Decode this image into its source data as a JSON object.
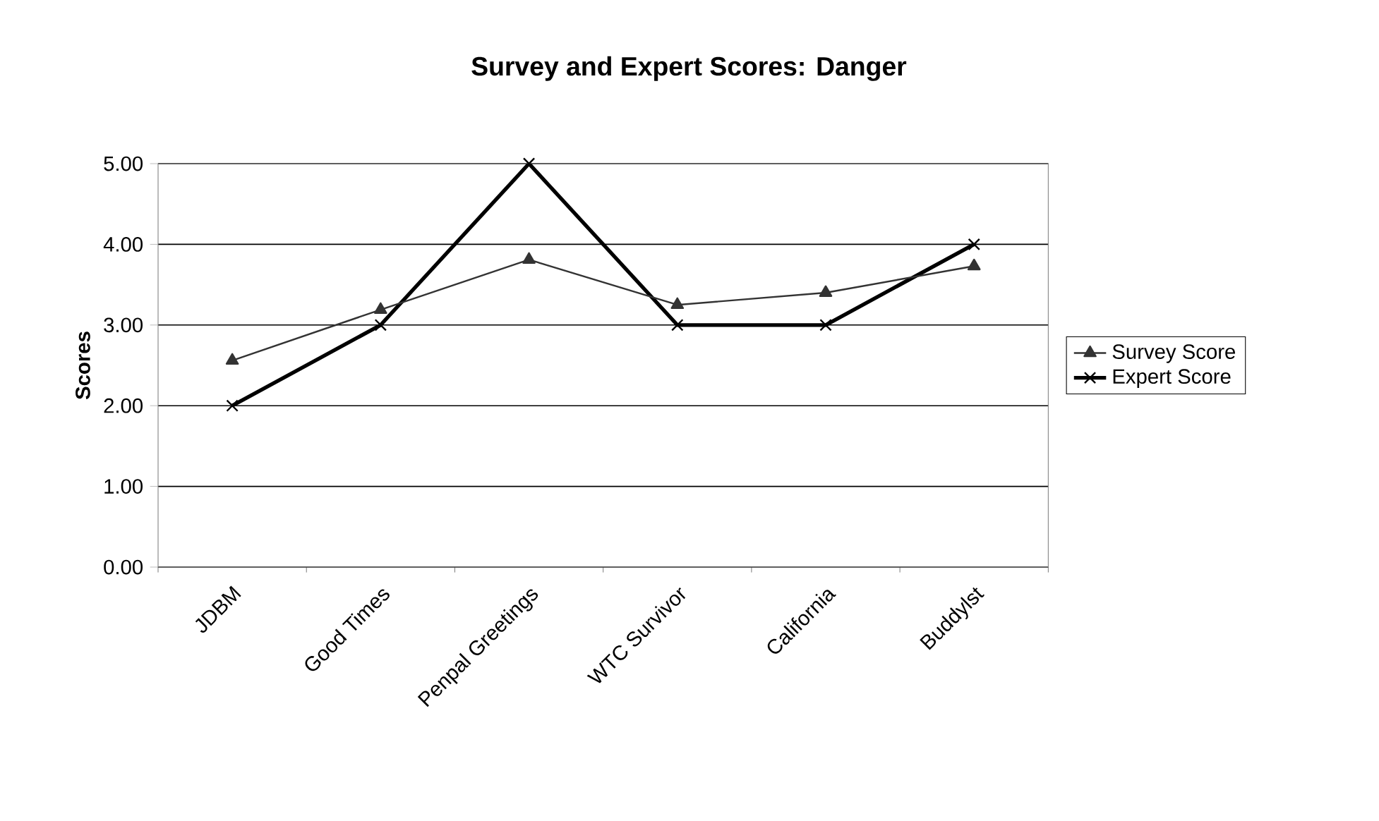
{
  "chart_data": {
    "type": "line",
    "title": "Survey and Expert Scores: Danger",
    "ylabel": "Scores",
    "categories": [
      "JDBM",
      "Good Times",
      "Penpal Greetings",
      "WTC Survivor",
      "California",
      "Buddylst"
    ],
    "series": [
      {
        "name": "Survey Score",
        "color": "#333333",
        "marker": "triangle",
        "values": [
          2.56,
          3.19,
          3.81,
          3.25,
          3.4,
          3.73
        ]
      },
      {
        "name": "Expert Score",
        "color": "#000000",
        "marker": "cross",
        "values": [
          2,
          3,
          5,
          3,
          3,
          4
        ]
      }
    ],
    "ylim": [
      0,
      5
    ],
    "yticks": [
      {
        "value": 0,
        "label": "0.00"
      },
      {
        "value": 1,
        "label": "1.00"
      },
      {
        "value": 2,
        "label": "2.00"
      },
      {
        "value": 3,
        "label": "3.00"
      },
      {
        "value": 4,
        "label": "4.00"
      },
      {
        "value": 5,
        "label": "5.00"
      }
    ],
    "grid": "y",
    "legend": "right",
    "line_style": "solid"
  }
}
